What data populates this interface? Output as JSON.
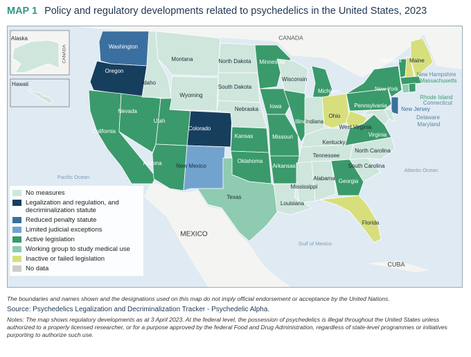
{
  "header": {
    "map_number": "MAP 1",
    "title": "Policy and regulatory developments related to psychedelics in the United States, 2023"
  },
  "map": {
    "legend": [
      {
        "label": "No measures",
        "color": "#cfe6dc",
        "states": [
          "Montana",
          "Idaho",
          "Wyoming",
          "North Dakota",
          "South Dakota",
          "Nebraska",
          "Wisconsin",
          "Indiana",
          "Kentucky",
          "Tennessee",
          "Mississippi",
          "Alabama",
          "Louisiana",
          "North Carolina",
          "South Carolina",
          "Delaware",
          "Maryland",
          "Alaska",
          "Hawaii"
        ]
      },
      {
        "label": "Legalization and regulation, and decriminalization statute",
        "color": "#163f5e",
        "states": [
          "Oregon",
          "Colorado"
        ]
      },
      {
        "label": "Reduced penalty statute",
        "color": "#3b6f9f",
        "states": [
          "Washington",
          "New Jersey"
        ]
      },
      {
        "label": "Limited judicial exceptions",
        "color": "#72a3cf",
        "states": [
          "New Mexico"
        ]
      },
      {
        "label": "Active legislation",
        "color": "#3a9a6b",
        "states": [
          "California",
          "Nevada",
          "Utah",
          "Arizona",
          "Minnesota",
          "Iowa",
          "Missouri",
          "Illinois",
          "Michigan",
          "Kansas",
          "Oklahoma",
          "Arkansas",
          "Georgia",
          "New York",
          "Pennsylvania",
          "Virginia",
          "Vermont",
          "Massachusetts",
          "Rhode Island"
        ]
      },
      {
        "label": "Working group to study medical use",
        "color": "#8ecbb1",
        "states": [
          "Texas",
          "Connecticut"
        ]
      },
      {
        "label": "Inactive or failed legislation",
        "color": "#d7df7c",
        "states": [
          "Ohio",
          "West Virginia",
          "Maine",
          "New Hampshire",
          "Florida"
        ]
      },
      {
        "label": "No data",
        "color": "#cccccc",
        "states": []
      }
    ],
    "places": [
      "CANADA",
      "MEXICO",
      "CUBA",
      "Pacific Ocean",
      "Atlantic Ocean",
      "Gulf of Mexico"
    ],
    "inset_places": [
      "CANADA"
    ]
  },
  "footer": {
    "disclaimer": "The boundaries and names shown and the designations used on this map do not imply official endorsement or acceptance by the United Nations.",
    "source": "Source: Psychedelics Legalization and Decriminalization Tracker - Psychedelic Alpha.",
    "notes": "Notes: The map shows regulatory developments as at 3 April 2023. At the federal level, the possession of psychedelics is illegal throughout the United States unless authorized to a properly licensed researcher, or for a purpose approved by the federal Food and Drug Administration, regardless of state-level programmes or initiatives purporting to authorize such use."
  }
}
